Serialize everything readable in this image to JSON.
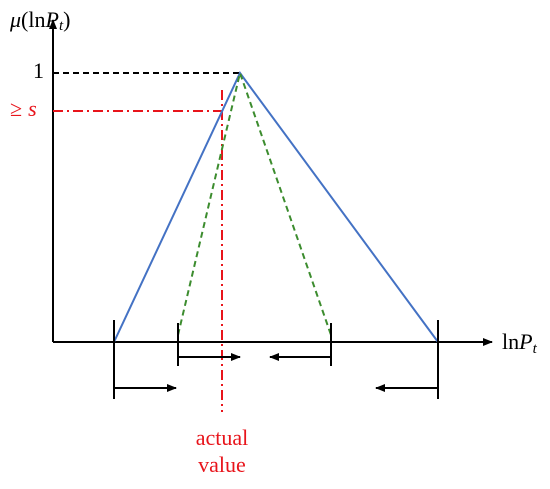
{
  "y_axis_label": {
    "mu": "μ",
    "open": "(ln",
    "p": "P",
    "sub": "t",
    "close": ")"
  },
  "x_axis_label": {
    "ln": "ln",
    "p": "P",
    "sub": "t"
  },
  "markers": {
    "one": "1",
    "geq": "≥",
    "s": "s"
  },
  "annotation": {
    "line1": "actual",
    "line2": "value"
  }
}
